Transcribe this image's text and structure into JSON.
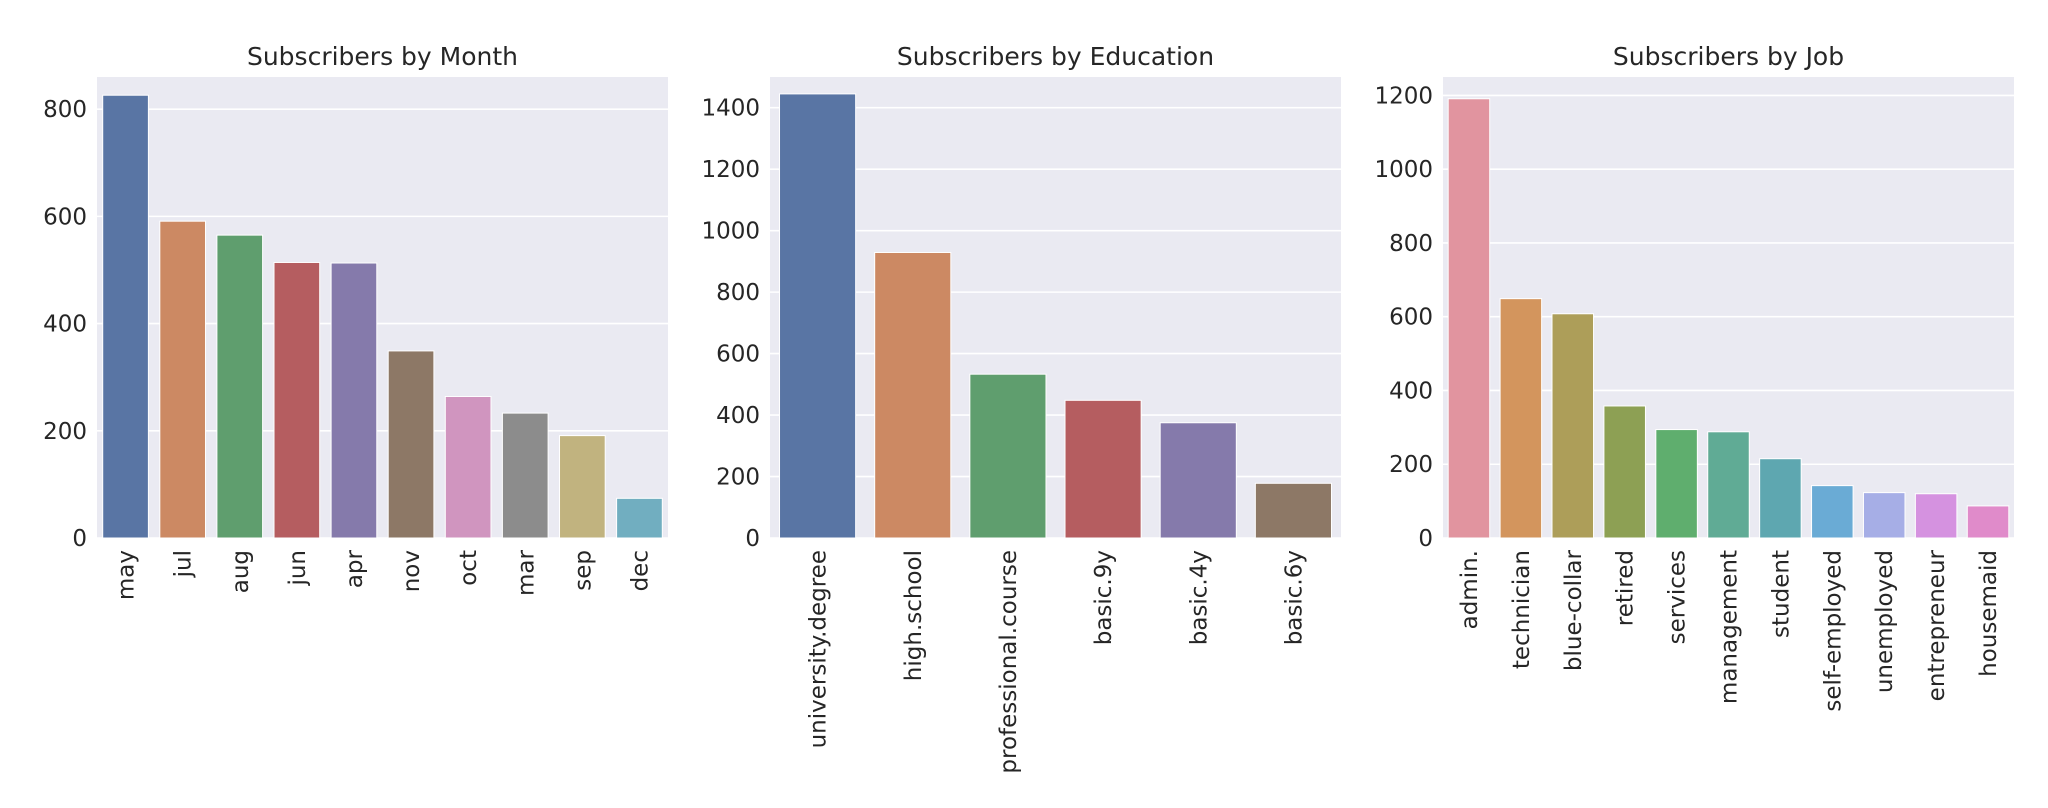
{
  "chart_data": [
    {
      "type": "bar",
      "title": "Subscribers by Month",
      "xlabel": "",
      "ylabel": "",
      "categories": [
        "may",
        "jul",
        "aug",
        "jun",
        "apr",
        "nov",
        "oct",
        "mar",
        "sep",
        "dec"
      ],
      "values": [
        826,
        591,
        565,
        514,
        513,
        349,
        264,
        233,
        191,
        74
      ],
      "ylim": [
        0,
        860
      ],
      "yticks": [
        0,
        200,
        400,
        600,
        800
      ],
      "grid": true,
      "colors": [
        "#5975a4",
        "#cc8963",
        "#5f9e6e",
        "#b55d60",
        "#857aab",
        "#8d7866",
        "#d095bf",
        "#8c8c8c",
        "#c1b37f",
        "#71aec0"
      ]
    },
    {
      "type": "bar",
      "title": "Subscribers by Education",
      "xlabel": "",
      "ylabel": "",
      "categories": [
        "university.degree",
        "high.school",
        "professional.course",
        "basic.9y",
        "basic.4y",
        "basic.6y"
      ],
      "values": [
        1445,
        929,
        533,
        448,
        375,
        178
      ],
      "ylim": [
        0,
        1500
      ],
      "yticks": [
        0,
        200,
        400,
        600,
        800,
        1000,
        1200,
        1400
      ],
      "grid": true,
      "colors": [
        "#5975a4",
        "#cc8963",
        "#5f9e6e",
        "#b55d60",
        "#857aab",
        "#8d7866"
      ]
    },
    {
      "type": "bar",
      "title": "Subscribers by Job",
      "xlabel": "",
      "ylabel": "",
      "categories": [
        "admin.",
        "technician",
        "blue-collar",
        "retired",
        "services",
        "management",
        "student",
        "self-employed",
        "unemployed",
        "entrepreneur",
        "housemaid"
      ],
      "values": [
        1191,
        649,
        608,
        358,
        294,
        288,
        215,
        142,
        123,
        120,
        87
      ],
      "ylim": [
        0,
        1250
      ],
      "yticks": [
        0,
        200,
        400,
        600,
        800,
        1000,
        1200
      ],
      "grid": true,
      "colors": [
        "#e1949f",
        "#d3955d",
        "#ad9e59",
        "#8da054",
        "#5fae6e",
        "#60ab95",
        "#5ea7b0",
        "#6aabd5",
        "#a6aee6",
        "#d592e0",
        "#e08bca"
      ]
    }
  ]
}
